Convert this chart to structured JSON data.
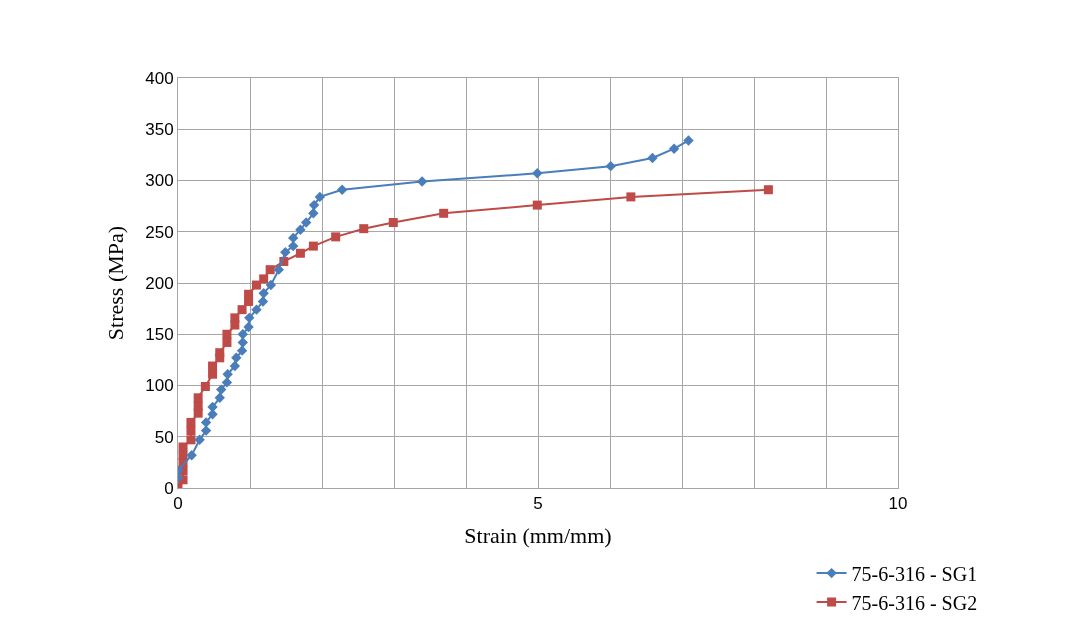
{
  "chart_data": {
    "type": "line",
    "xlabel": "Strain (mm/mm)",
    "ylabel": "Stress (MPa)",
    "xlim": [
      0,
      10
    ],
    "xticks": [
      0,
      5,
      10
    ],
    "ylim": [
      0,
      400
    ],
    "yticks": [
      0,
      50,
      100,
      150,
      200,
      250,
      300,
      350,
      400
    ],
    "grid": true,
    "legend": "bottom right",
    "series": [
      {
        "name": "75-6-316 - SG1",
        "color": "#4a7ebb",
        "marker": "diamond",
        "x": [
          0,
          0,
          0.19,
          0.3,
          0.39,
          0.39,
          0.48,
          0.48,
          0.58,
          0.6,
          0.68,
          0.69,
          0.79,
          0.81,
          0.89,
          0.9,
          0.9,
          0.98,
          0.99,
          1.09,
          1.18,
          1.19,
          1.29,
          1.4,
          1.49,
          1.6,
          1.6,
          1.7,
          1.78,
          1.88,
          1.89,
          1.97,
          2.28,
          3.39,
          4.99,
          6.01,
          6.59,
          6.89,
          7.09
        ],
        "values": [
          10,
          17,
          32,
          47,
          56,
          64,
          72,
          79,
          88,
          96,
          103,
          111,
          119,
          127,
          134,
          142,
          150,
          157,
          166,
          174,
          182,
          190,
          198,
          213,
          230,
          236,
          244,
          252,
          259,
          268,
          276,
          284,
          291,
          299,
          307,
          314,
          322,
          331,
          339
        ]
      },
      {
        "name": "75-6-316 - SG2",
        "color": "#be4b48",
        "marker": "square",
        "x": [
          0,
          0.07,
          0.07,
          0.07,
          0.07,
          0.07,
          0.18,
          0.18,
          0.18,
          0.28,
          0.28,
          0.28,
          0.38,
          0.48,
          0.48,
          0.58,
          0.58,
          0.68,
          0.68,
          0.79,
          0.79,
          0.89,
          0.98,
          0.98,
          1.09,
          1.19,
          1.28,
          1.47,
          1.7,
          1.88,
          2.19,
          2.58,
          2.99,
          3.69,
          4.99,
          6.29,
          8.2
        ],
        "values": [
          1,
          8,
          17,
          25,
          32,
          40,
          47,
          56,
          64,
          73,
          80,
          88,
          99,
          111,
          119,
          127,
          132,
          142,
          150,
          159,
          166,
          174,
          182,
          189,
          198,
          204,
          213,
          221,
          229,
          236,
          245,
          253,
          259,
          268,
          276,
          284,
          291
        ]
      }
    ]
  }
}
